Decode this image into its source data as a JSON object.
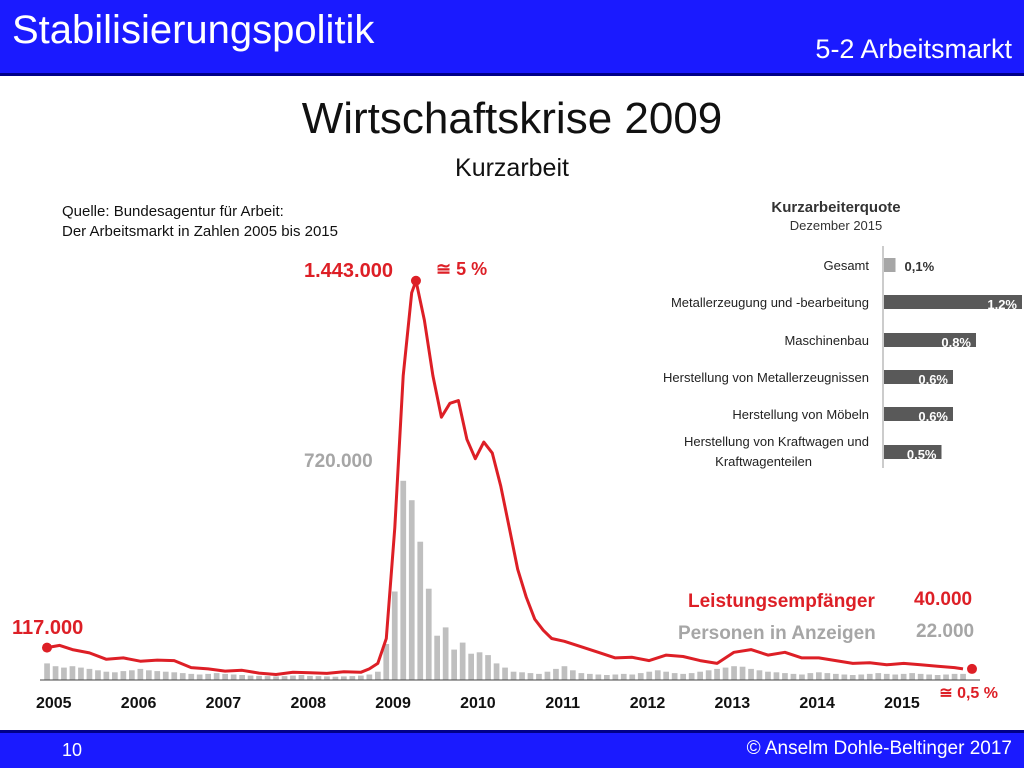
{
  "header": {
    "title": "Stabilisierungspolitik",
    "section": "5-2 Arbeitsmarkt"
  },
  "slide": {
    "title": "Wirtschaftskrise 2009",
    "subtitle": "Kurzarbeit"
  },
  "source": {
    "line1": "Quelle: Bundesagentur für Arbeit:",
    "line2": "Der Arbeitsmarkt in Zahlen 2005 bis 2015"
  },
  "colors": {
    "brand_blue": "#1a1aff",
    "line_red": "#dd1f26",
    "bar_gray": "#bfbfbf",
    "quota_bar": "#595959"
  },
  "chart_data": [
    {
      "type": "line",
      "x_ticks": [
        "2005",
        "2006",
        "2007",
        "2008",
        "2009",
        "2010",
        "2011",
        "2012",
        "2013",
        "2014",
        "2015"
      ],
      "ylim": [
        0,
        1500000
      ],
      "grid": false,
      "series": [
        {
          "name": "Leistungsempfänger",
          "color": "#dd1f26",
          "end_label": "40.000",
          "points": [
            [
              2005.0,
              117000
            ],
            [
              2005.15,
              125000
            ],
            [
              2005.3,
              110000
            ],
            [
              2005.5,
              98000
            ],
            [
              2005.7,
              75000
            ],
            [
              2005.9,
              80000
            ],
            [
              2006.1,
              68000
            ],
            [
              2006.3,
              72000
            ],
            [
              2006.5,
              70000
            ],
            [
              2006.7,
              45000
            ],
            [
              2006.9,
              40000
            ],
            [
              2007.1,
              32000
            ],
            [
              2007.3,
              35000
            ],
            [
              2007.5,
              25000
            ],
            [
              2007.7,
              20000
            ],
            [
              2007.9,
              28000
            ],
            [
              2008.1,
              26000
            ],
            [
              2008.3,
              24000
            ],
            [
              2008.5,
              30000
            ],
            [
              2008.7,
              28000
            ],
            [
              2008.8,
              40000
            ],
            [
              2008.9,
              60000
            ],
            [
              2009.0,
              150000
            ],
            [
              2009.1,
              550000
            ],
            [
              2009.2,
              1100000
            ],
            [
              2009.3,
              1400000
            ],
            [
              2009.35,
              1443000
            ],
            [
              2009.45,
              1300000
            ],
            [
              2009.55,
              1100000
            ],
            [
              2009.65,
              950000
            ],
            [
              2009.75,
              1000000
            ],
            [
              2009.85,
              1010000
            ],
            [
              2009.95,
              870000
            ],
            [
              2010.05,
              800000
            ],
            [
              2010.15,
              860000
            ],
            [
              2010.25,
              820000
            ],
            [
              2010.35,
              700000
            ],
            [
              2010.45,
              550000
            ],
            [
              2010.55,
              400000
            ],
            [
              2010.65,
              300000
            ],
            [
              2010.75,
              220000
            ],
            [
              2010.85,
              180000
            ],
            [
              2010.95,
              150000
            ],
            [
              2011.1,
              140000
            ],
            [
              2011.3,
              120000
            ],
            [
              2011.5,
              100000
            ],
            [
              2011.7,
              80000
            ],
            [
              2011.9,
              82000
            ],
            [
              2012.1,
              70000
            ],
            [
              2012.3,
              90000
            ],
            [
              2012.5,
              85000
            ],
            [
              2012.7,
              70000
            ],
            [
              2012.9,
              60000
            ],
            [
              2013.1,
              100000
            ],
            [
              2013.3,
              110000
            ],
            [
              2013.5,
              90000
            ],
            [
              2013.7,
              100000
            ],
            [
              2013.9,
              80000
            ],
            [
              2014.1,
              80000
            ],
            [
              2014.3,
              70000
            ],
            [
              2014.5,
              60000
            ],
            [
              2014.7,
              62000
            ],
            [
              2014.9,
              55000
            ],
            [
              2015.1,
              60000
            ],
            [
              2015.3,
              55000
            ],
            [
              2015.5,
              50000
            ],
            [
              2015.7,
              45000
            ],
            [
              2015.8,
              40000
            ]
          ]
        },
        {
          "name": "Personen in Anzeigen",
          "color": "#bfbfbf",
          "type": "bar",
          "end_label": "22.000",
          "points": [
            [
              2005.0,
              60000
            ],
            [
              2005.1,
              50000
            ],
            [
              2005.2,
              45000
            ],
            [
              2005.3,
              50000
            ],
            [
              2005.4,
              45000
            ],
            [
              2005.5,
              40000
            ],
            [
              2005.6,
              35000
            ],
            [
              2005.7,
              30000
            ],
            [
              2005.8,
              28000
            ],
            [
              2005.9,
              32000
            ],
            [
              2006.0,
              35000
            ],
            [
              2006.1,
              40000
            ],
            [
              2006.2,
              35000
            ],
            [
              2006.3,
              32000
            ],
            [
              2006.4,
              30000
            ],
            [
              2006.5,
              28000
            ],
            [
              2006.6,
              25000
            ],
            [
              2006.7,
              22000
            ],
            [
              2006.8,
              20000
            ],
            [
              2006.9,
              22000
            ],
            [
              2007.0,
              25000
            ],
            [
              2007.1,
              22000
            ],
            [
              2007.2,
              20000
            ],
            [
              2007.3,
              18000
            ],
            [
              2007.4,
              16000
            ],
            [
              2007.5,
              15000
            ],
            [
              2007.6,
              14000
            ],
            [
              2007.7,
              13000
            ],
            [
              2007.8,
              14000
            ],
            [
              2007.9,
              16000
            ],
            [
              2008.0,
              18000
            ],
            [
              2008.1,
              15000
            ],
            [
              2008.2,
              14000
            ],
            [
              2008.3,
              13000
            ],
            [
              2008.4,
              12000
            ],
            [
              2008.5,
              13000
            ],
            [
              2008.6,
              14000
            ],
            [
              2008.7,
              16000
            ],
            [
              2008.8,
              20000
            ],
            [
              2008.9,
              30000
            ],
            [
              2009.0,
              130000
            ],
            [
              2009.1,
              320000
            ],
            [
              2009.2,
              720000
            ],
            [
              2009.3,
              650000
            ],
            [
              2009.4,
              500000
            ],
            [
              2009.5,
              330000
            ],
            [
              2009.6,
              160000
            ],
            [
              2009.7,
              190000
            ],
            [
              2009.8,
              110000
            ],
            [
              2009.9,
              135000
            ],
            [
              2010.0,
              95000
            ],
            [
              2010.1,
              100000
            ],
            [
              2010.2,
              90000
            ],
            [
              2010.3,
              60000
            ],
            [
              2010.4,
              45000
            ],
            [
              2010.5,
              30000
            ],
            [
              2010.6,
              28000
            ],
            [
              2010.7,
              25000
            ],
            [
              2010.8,
              22000
            ],
            [
              2010.9,
              30000
            ],
            [
              2011.0,
              40000
            ],
            [
              2011.1,
              50000
            ],
            [
              2011.2,
              35000
            ],
            [
              2011.3,
              25000
            ],
            [
              2011.4,
              22000
            ],
            [
              2011.5,
              20000
            ],
            [
              2011.6,
              18000
            ],
            [
              2011.7,
              20000
            ],
            [
              2011.8,
              22000
            ],
            [
              2011.9,
              20000
            ],
            [
              2012.0,
              25000
            ],
            [
              2012.1,
              30000
            ],
            [
              2012.2,
              35000
            ],
            [
              2012.3,
              30000
            ],
            [
              2012.4,
              25000
            ],
            [
              2012.5,
              22000
            ],
            [
              2012.6,
              25000
            ],
            [
              2012.7,
              30000
            ],
            [
              2012.8,
              35000
            ],
            [
              2012.9,
              40000
            ],
            [
              2013.0,
              45000
            ],
            [
              2013.1,
              50000
            ],
            [
              2013.2,
              48000
            ],
            [
              2013.3,
              40000
            ],
            [
              2013.4,
              35000
            ],
            [
              2013.5,
              30000
            ],
            [
              2013.6,
              28000
            ],
            [
              2013.7,
              25000
            ],
            [
              2013.8,
              22000
            ],
            [
              2013.9,
              20000
            ],
            [
              2014.0,
              25000
            ],
            [
              2014.1,
              28000
            ],
            [
              2014.2,
              25000
            ],
            [
              2014.3,
              22000
            ],
            [
              2014.4,
              20000
            ],
            [
              2014.5,
              18000
            ],
            [
              2014.6,
              20000
            ],
            [
              2014.7,
              22000
            ],
            [
              2014.8,
              25000
            ],
            [
              2014.9,
              22000
            ],
            [
              2015.0,
              20000
            ],
            [
              2015.1,
              22000
            ],
            [
              2015.2,
              25000
            ],
            [
              2015.3,
              22000
            ],
            [
              2015.4,
              20000
            ],
            [
              2015.5,
              18000
            ],
            [
              2015.6,
              20000
            ],
            [
              2015.7,
              22000
            ],
            [
              2015.8,
              22000
            ]
          ]
        }
      ],
      "annotations": {
        "start_value": "117.000",
        "peak_value": "1.443.000",
        "peak_share": "≅ 5 %",
        "bar_peak_value": "720.000",
        "end_share": "≅ 0,5 %",
        "legend_red": "Leistungsempfänger",
        "legend_gray": "Personen in Anzeigen",
        "legend_red_value": "40.000",
        "legend_gray_value": "22.000"
      }
    },
    {
      "type": "bar",
      "title": "Kurzarbeiterquote",
      "subtitle": "Dezember 2015",
      "orientation": "horizontal",
      "categories": [
        [
          "Gesamt"
        ],
        [
          "Metallerzeugung und -bearbeitung"
        ],
        [
          "Maschinenbau"
        ],
        [
          "Herstellung von Metallerzeugnissen"
        ],
        [
          "Herstellung von Möbeln"
        ],
        [
          "Herstellung von Kraftwagen und",
          "Kraftwagenteilen"
        ]
      ],
      "values": [
        0.1,
        1.2,
        0.8,
        0.6,
        0.6,
        0.5
      ],
      "value_labels": [
        "0,1%",
        "1,2%",
        "0,8%",
        "0,6%",
        "0,6%",
        "0,5%"
      ]
    }
  ],
  "footer": {
    "page": "10",
    "copyright": "© Anselm Dohle-Beltinger 2017"
  }
}
